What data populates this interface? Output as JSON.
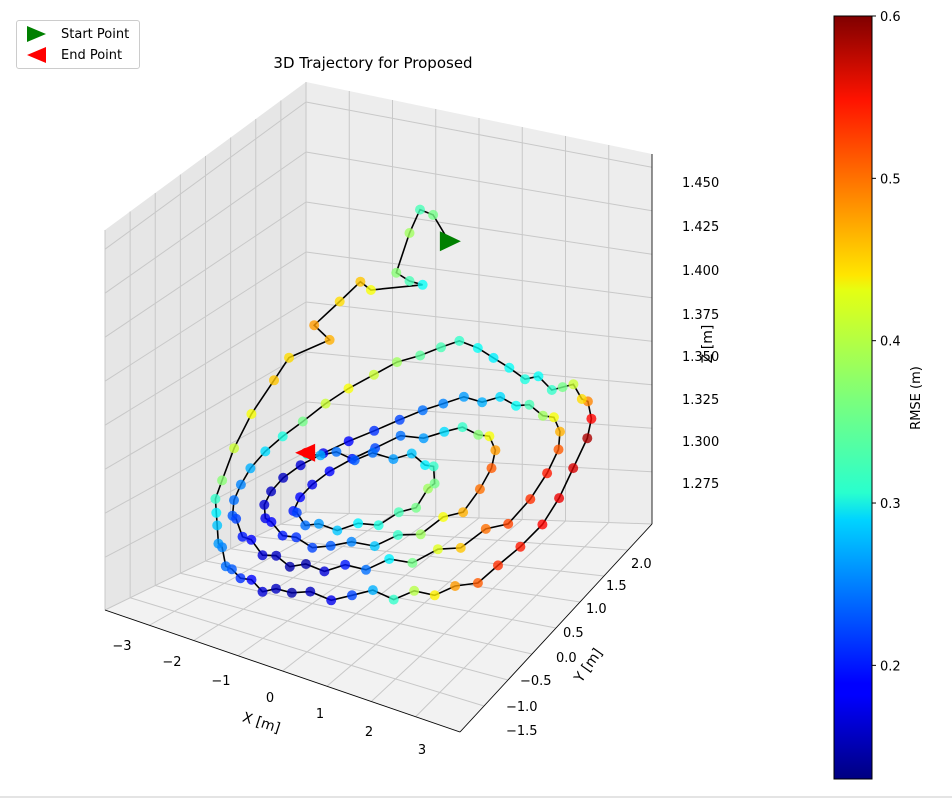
{
  "chart_data": {
    "type": "scatter",
    "projection": "3d",
    "title": "3D Trajectory for Proposed",
    "xlabel": "X [m]",
    "ylabel": "Y [m]",
    "zlabel": "Z [m]",
    "xticks": [
      "−3",
      "−2",
      "−1",
      "0",
      "1",
      "2",
      "3"
    ],
    "yticks": [
      "−1.5",
      "−1.0",
      "−0.5",
      "0.0",
      "0.5",
      "1.0",
      "1.5",
      "2.0"
    ],
    "zticks": [
      "1.275",
      "1.300",
      "1.325",
      "1.350",
      "1.375",
      "1.400",
      "1.425",
      "1.450"
    ],
    "xlim": [
      -3.3,
      3.3
    ],
    "ylim": [
      -1.8,
      2.3
    ],
    "zlim": [
      1.25,
      1.46
    ],
    "colorbar": {
      "label": "RMSE (m)",
      "cmap": "jet",
      "range": [
        0.13,
        0.6
      ],
      "ticks": [
        "0.2",
        "0.3",
        "0.4",
        "0.5",
        "0.6"
      ]
    },
    "legend": {
      "placement": "top-left",
      "entries": [
        {
          "label": "Start Point",
          "marker": "triangle-right",
          "color": "#008000"
        },
        {
          "label": "End Point",
          "marker": "triangle-left",
          "color": "#ff0000"
        }
      ]
    },
    "line_color": "#000000",
    "grid": true,
    "trajectory": {
      "columns": [
        "x",
        "y",
        "z",
        "rmse"
      ],
      "start": [
        -0.3,
        2.0,
        1.428,
        0.33
      ],
      "end": [
        -2.0,
        0.9,
        1.305,
        0.55
      ],
      "points": [
        [
          -0.3,
          2.0,
          1.428,
          0.33
        ],
        [
          -0.6,
          2.0,
          1.445,
          0.36
        ],
        [
          -0.85,
          2.0,
          1.448,
          0.34
        ],
        [
          -1.05,
          2.0,
          1.432,
          0.38
        ],
        [
          -1.3,
          2.0,
          1.405,
          0.37
        ],
        [
          -1.05,
          2.0,
          1.4,
          0.34
        ],
        [
          -0.8,
          2.0,
          1.398,
          0.31
        ],
        [
          -1.6,
          1.8,
          1.397,
          0.42
        ],
        [
          -1.8,
          1.8,
          1.402,
          0.45
        ],
        [
          -2.1,
          1.7,
          1.39,
          0.44
        ],
        [
          -2.4,
          1.5,
          1.377,
          0.47
        ],
        [
          -2.2,
          1.6,
          1.366,
          0.46
        ],
        [
          -2.6,
          1.2,
          1.36,
          0.44
        ],
        [
          -2.7,
          1.0,
          1.348,
          0.45
        ],
        [
          -2.85,
          0.7,
          1.33,
          0.42
        ],
        [
          -2.9,
          0.4,
          1.312,
          0.4
        ],
        [
          -2.85,
          0.1,
          1.296,
          0.37
        ],
        [
          -2.7,
          -0.2,
          1.29,
          0.33
        ],
        [
          -2.5,
          -0.4,
          1.286,
          0.3
        ],
        [
          -2.3,
          -0.6,
          1.283,
          0.28
        ],
        [
          -2.05,
          -0.85,
          1.278,
          0.26
        ],
        [
          -1.8,
          -1.05,
          1.282,
          0.25
        ],
        [
          -1.55,
          -1.25,
          1.276,
          0.24
        ],
        [
          -1.3,
          -1.4,
          1.28,
          0.23
        ],
        [
          -1.05,
          -1.5,
          1.279,
          0.21
        ],
        [
          -0.8,
          -1.55,
          1.282,
          0.19
        ],
        [
          -0.55,
          -1.6,
          1.278,
          0.17
        ],
        [
          -0.3,
          -1.6,
          1.283,
          0.16
        ],
        [
          -0.05,
          -1.55,
          1.282,
          0.15
        ],
        [
          0.25,
          -1.5,
          1.285,
          0.16
        ],
        [
          0.55,
          -1.4,
          1.28,
          0.18
        ],
        [
          0.85,
          -1.3,
          1.284,
          0.22
        ],
        [
          1.15,
          -1.2,
          1.288,
          0.27
        ],
        [
          1.45,
          -1.1,
          1.282,
          0.33
        ],
        [
          1.7,
          -0.95,
          1.286,
          0.39
        ],
        [
          1.95,
          -0.8,
          1.281,
          0.43
        ],
        [
          2.2,
          -0.65,
          1.285,
          0.47
        ],
        [
          2.45,
          -0.45,
          1.283,
          0.5
        ],
        [
          2.65,
          -0.25,
          1.29,
          0.52
        ],
        [
          2.85,
          0.0,
          1.296,
          0.53
        ],
        [
          3.0,
          0.3,
          1.302,
          0.54
        ],
        [
          3.05,
          0.6,
          1.31,
          0.55
        ],
        [
          3.05,
          0.9,
          1.32,
          0.56
        ],
        [
          3.05,
          1.2,
          1.33,
          0.58
        ],
        [
          2.95,
          1.4,
          1.336,
          0.54
        ],
        [
          2.75,
          1.55,
          1.342,
          0.48
        ],
        [
          2.5,
          1.7,
          1.338,
          0.44
        ],
        [
          2.25,
          1.8,
          1.344,
          0.4
        ],
        [
          2.0,
          1.85,
          1.34,
          0.36
        ],
        [
          1.75,
          1.9,
          1.336,
          0.33
        ],
        [
          1.45,
          1.95,
          1.343,
          0.31
        ],
        [
          1.15,
          2.0,
          1.339,
          0.32
        ],
        [
          0.85,
          2.0,
          1.346,
          0.31
        ],
        [
          0.55,
          2.0,
          1.352,
          0.3
        ],
        [
          0.25,
          2.0,
          1.358,
          0.31
        ],
        [
          -0.1,
          2.0,
          1.362,
          0.33
        ],
        [
          -0.45,
          2.0,
          1.357,
          0.34
        ],
        [
          -0.8,
          1.95,
          1.352,
          0.35
        ],
        [
          -1.15,
          1.85,
          1.349,
          0.38
        ],
        [
          -1.45,
          1.7,
          1.343,
          0.4
        ],
        [
          -1.75,
          1.5,
          1.337,
          0.42
        ],
        [
          -2.0,
          1.3,
          1.33,
          0.4
        ],
        [
          -2.2,
          1.05,
          1.322,
          0.36
        ],
        [
          -2.35,
          0.8,
          1.316,
          0.32
        ],
        [
          -2.45,
          0.55,
          1.31,
          0.29
        ],
        [
          -2.5,
          0.3,
          1.303,
          0.27
        ],
        [
          -2.45,
          0.05,
          1.297,
          0.25
        ],
        [
          -2.35,
          -0.2,
          1.292,
          0.24
        ],
        [
          -2.15,
          -0.45,
          1.288,
          0.23
        ],
        [
          -1.9,
          -0.65,
          1.292,
          0.22
        ],
        [
          -1.6,
          -0.85,
          1.287,
          0.2
        ],
        [
          -1.3,
          -1.0,
          1.291,
          0.19
        ],
        [
          -1.0,
          -1.1,
          1.286,
          0.17
        ],
        [
          -0.7,
          -1.15,
          1.29,
          0.16
        ],
        [
          -0.4,
          -1.2,
          1.287,
          0.15
        ],
        [
          -0.1,
          -1.2,
          1.292,
          0.15
        ],
        [
          0.2,
          -1.15,
          1.289,
          0.17
        ],
        [
          0.5,
          -1.05,
          1.294,
          0.2
        ],
        [
          0.8,
          -0.95,
          1.291,
          0.24
        ],
        [
          1.1,
          -0.8,
          1.297,
          0.3
        ],
        [
          1.4,
          -0.65,
          1.293,
          0.36
        ],
        [
          1.7,
          -0.45,
          1.299,
          0.41
        ],
        [
          1.95,
          -0.25,
          1.296,
          0.45
        ],
        [
          2.2,
          0.0,
          1.303,
          0.49
        ],
        [
          2.4,
          0.25,
          1.3,
          0.51
        ],
        [
          2.55,
          0.55,
          1.308,
          0.52
        ],
        [
          2.6,
          0.85,
          1.316,
          0.53
        ],
        [
          2.55,
          1.15,
          1.322,
          0.5
        ],
        [
          2.4,
          1.35,
          1.327,
          0.46
        ],
        [
          2.15,
          1.5,
          1.331,
          0.42
        ],
        [
          1.85,
          1.6,
          1.328,
          0.38
        ],
        [
          1.55,
          1.65,
          1.333,
          0.34
        ],
        [
          1.25,
          1.7,
          1.33,
          0.31
        ],
        [
          0.95,
          1.7,
          1.335,
          0.29
        ],
        [
          0.65,
          1.65,
          1.332,
          0.27
        ],
        [
          0.35,
          1.6,
          1.336,
          0.26
        ],
        [
          0.05,
          1.5,
          1.333,
          0.25
        ],
        [
          -0.25,
          1.4,
          1.33,
          0.24
        ],
        [
          -0.55,
          1.25,
          1.326,
          0.22
        ],
        [
          -0.85,
          1.05,
          1.322,
          0.21
        ],
        [
          -1.15,
          0.85,
          1.318,
          0.19
        ],
        [
          -1.4,
          0.6,
          1.314,
          0.18
        ],
        [
          -1.6,
          0.35,
          1.31,
          0.17
        ],
        [
          -1.7,
          0.1,
          1.306,
          0.16
        ],
        [
          -1.7,
          -0.15,
          1.302,
          0.16
        ],
        [
          -1.6,
          -0.4,
          1.299,
          0.17
        ],
        [
          -1.4,
          -0.6,
          1.296,
          0.18
        ],
        [
          -1.15,
          -0.75,
          1.299,
          0.19
        ],
        [
          -0.85,
          -0.85,
          1.295,
          0.2
        ],
        [
          -0.55,
          -0.9,
          1.298,
          0.21
        ],
        [
          -0.25,
          -0.9,
          1.294,
          0.22
        ],
        [
          0.05,
          -0.85,
          1.297,
          0.23
        ],
        [
          0.35,
          -0.75,
          1.3,
          0.25
        ],
        [
          0.65,
          -0.6,
          1.296,
          0.28
        ],
        [
          0.95,
          -0.45,
          1.302,
          0.33
        ],
        [
          1.2,
          -0.25,
          1.299,
          0.38
        ],
        [
          1.4,
          0.0,
          1.305,
          0.42
        ],
        [
          1.55,
          0.25,
          1.302,
          0.46
        ],
        [
          1.6,
          0.55,
          1.309,
          0.49
        ],
        [
          1.55,
          0.85,
          1.314,
          0.5
        ],
        [
          1.4,
          1.1,
          1.318,
          0.47
        ],
        [
          1.15,
          1.25,
          1.322,
          0.42
        ],
        [
          0.85,
          1.35,
          1.319,
          0.37
        ],
        [
          0.55,
          1.35,
          1.323,
          0.33
        ],
        [
          0.25,
          1.3,
          1.32,
          0.29
        ],
        [
          -0.05,
          1.2,
          1.317,
          0.26
        ],
        [
          -0.35,
          1.05,
          1.321,
          0.24
        ],
        [
          -0.65,
          0.85,
          1.316,
          0.22
        ],
        [
          -0.9,
          0.65,
          1.312,
          0.2
        ],
        [
          -1.1,
          0.4,
          1.308,
          0.19
        ],
        [
          -1.2,
          0.15,
          1.304,
          0.18
        ],
        [
          -1.2,
          -0.1,
          1.301,
          0.19
        ],
        [
          -1.1,
          -0.35,
          1.298,
          0.2
        ],
        [
          -0.9,
          -0.5,
          1.302,
          0.22
        ],
        [
          -0.65,
          -0.6,
          1.298,
          0.24
        ],
        [
          -0.35,
          -0.65,
          1.303,
          0.26
        ],
        [
          -0.05,
          -0.6,
          1.3,
          0.28
        ],
        [
          0.25,
          -0.5,
          1.305,
          0.3
        ],
        [
          0.5,
          -0.35,
          1.302,
          0.32
        ],
        [
          0.7,
          -0.15,
          1.307,
          0.34
        ],
        [
          0.8,
          0.1,
          1.304,
          0.36
        ],
        [
          0.8,
          0.35,
          1.31,
          0.38
        ],
        [
          0.7,
          0.6,
          1.306,
          0.36
        ],
        [
          0.5,
          0.8,
          1.311,
          0.33
        ],
        [
          0.25,
          0.9,
          1.308,
          0.3
        ],
        [
          -0.05,
          0.95,
          1.313,
          0.28
        ],
        [
          -0.35,
          0.9,
          1.309,
          0.26
        ],
        [
          -0.65,
          0.8,
          1.314,
          0.24
        ],
        [
          -0.9,
          0.7,
          1.31,
          0.23
        ],
        [
          -1.2,
          0.65,
          1.315,
          0.24
        ],
        [
          -1.5,
          0.65,
          1.311,
          0.27
        ],
        [
          -1.8,
          0.7,
          1.309,
          0.32
        ],
        [
          -2.0,
          0.9,
          1.305,
          0.55
        ]
      ]
    }
  }
}
